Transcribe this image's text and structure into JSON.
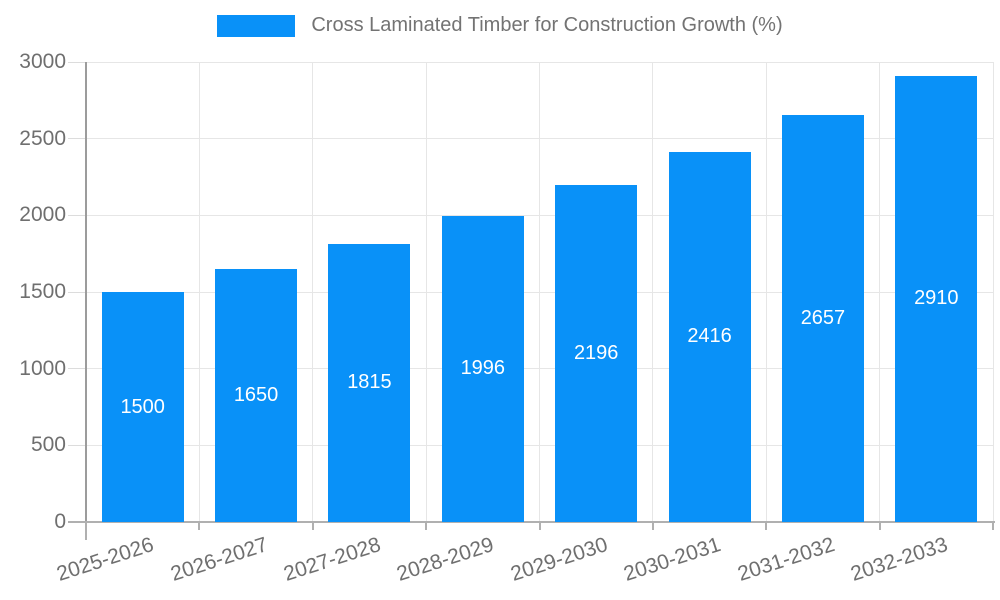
{
  "legend": {
    "label": "Cross Laminated Timber for Construction Growth (%)"
  },
  "colors": {
    "bar": "#0991f8",
    "bar_label": "#ffffff",
    "grid": "#e6e6e6",
    "axis": "#b0b0b0",
    "tick_text": "#6f6f6f",
    "legend_text": "#737373"
  },
  "chart_data": {
    "type": "bar",
    "title": "Cross Laminated Timber for Construction Growth (%)",
    "categories": [
      "2025-2026",
      "2026-2027",
      "2027-2028",
      "2028-2029",
      "2029-2030",
      "2030-2031",
      "2031-2032",
      "2032-2033"
    ],
    "values": [
      1500,
      1650,
      1815,
      1996,
      2196,
      2416,
      2657,
      2910
    ],
    "bar_value_labels": [
      "1500",
      "1650",
      "1815",
      "1996",
      "2196",
      "2416",
      "2657",
      "2910"
    ],
    "xlabel": "",
    "ylabel": "",
    "ylim": [
      0,
      3000
    ],
    "yticks": [
      0,
      500,
      1000,
      1500,
      2000,
      2500,
      3000
    ],
    "grid": true,
    "legend_position": "top-center",
    "x_tick_rotation_deg": -18,
    "value_label_position": "center-inside"
  }
}
